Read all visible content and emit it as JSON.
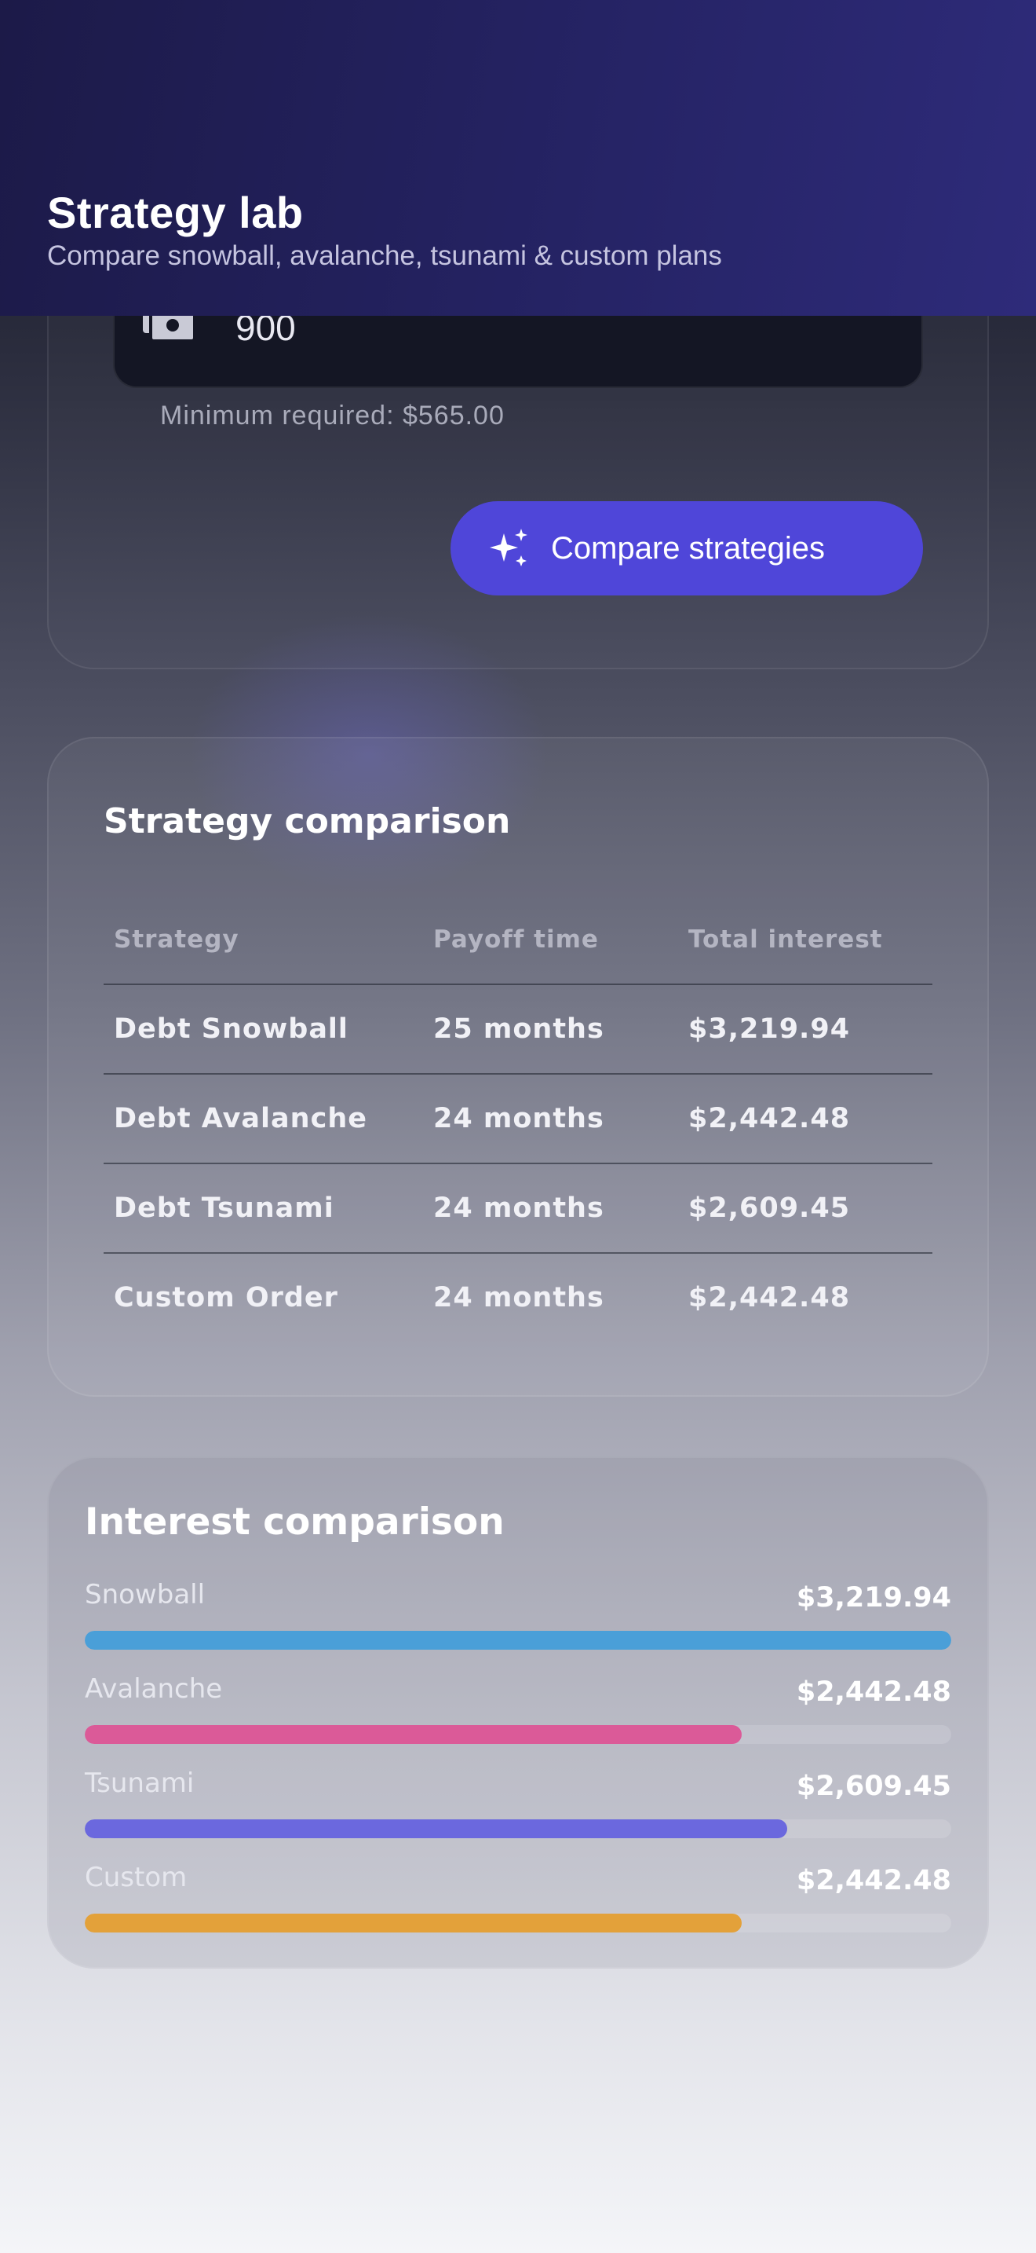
{
  "header": {
    "title": "Strategy lab",
    "subtitle": "Compare snowball, avalanche, tsunami & custom plans"
  },
  "budget": {
    "value": "900",
    "icon": "cash-icon",
    "minimum_text": "Minimum required: $565.00"
  },
  "compare_button": {
    "label": "Compare strategies",
    "icon": "sparkles-icon",
    "color": "#4f46d9"
  },
  "comparison_table": {
    "title": "Strategy comparison",
    "columns": [
      "Strategy",
      "Payoff time",
      "Total interest"
    ],
    "rows": [
      [
        "Debt Snowball",
        "25 months",
        "$3,219.94"
      ],
      [
        "Debt Avalanche",
        "24 months",
        "$2,442.48"
      ],
      [
        "Debt Tsunami",
        "24 months",
        "$2,609.45"
      ],
      [
        "Custom Order",
        "24 months",
        "$2,442.48"
      ]
    ]
  },
  "interest_comparison": {
    "title": "Interest comparison",
    "items": [
      {
        "label": "Snowball",
        "value": "$3,219.94",
        "amount": 3219.94,
        "color": "#4a9fd8"
      },
      {
        "label": "Avalanche",
        "value": "$2,442.48",
        "amount": 2442.48,
        "color": "#db5a98"
      },
      {
        "label": "Tsunami",
        "value": "$2,609.45",
        "amount": 2609.45,
        "color": "#6b68de"
      },
      {
        "label": "Custom",
        "value": "$2,442.48",
        "amount": 2442.48,
        "color": "#e3a13a"
      }
    ]
  }
}
